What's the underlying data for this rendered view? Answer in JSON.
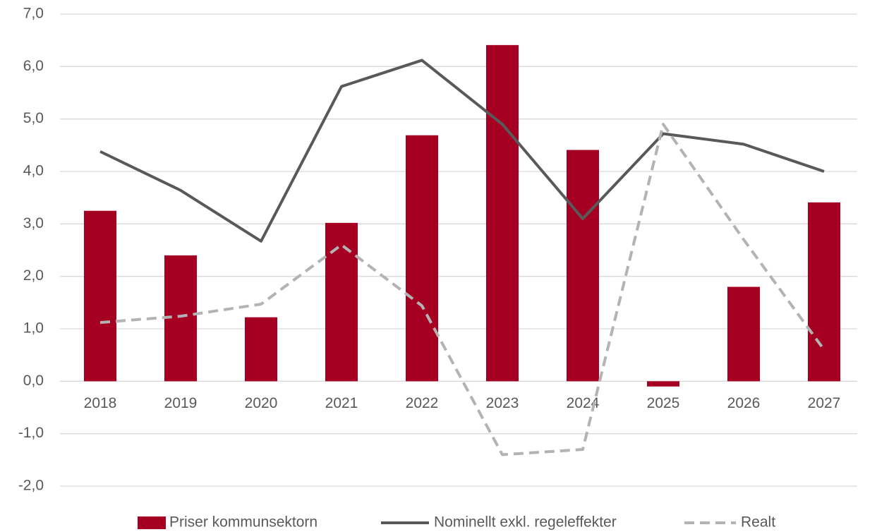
{
  "chart_data": {
    "type": "bar_line",
    "categories": [
      "2018",
      "2019",
      "2020",
      "2021",
      "2022",
      "2023",
      "2024",
      "2025",
      "2026",
      "2027"
    ],
    "series": [
      {
        "name": "Priser kommunsektorn",
        "type": "bar",
        "color": "#a50021",
        "values": [
          3.25,
          2.4,
          1.22,
          3.02,
          4.69,
          6.41,
          4.41,
          -0.1,
          1.8,
          3.41
        ]
      },
      {
        "name": "Nominellt exkl. regeleffekter",
        "type": "line",
        "color": "#595959",
        "dashed": false,
        "values": [
          4.38,
          3.64,
          2.67,
          5.62,
          6.12,
          4.9,
          3.1,
          4.72,
          4.52,
          4.0
        ]
      },
      {
        "name": "Realt",
        "type": "line",
        "color": "#b3b3b3",
        "dashed": true,
        "values": [
          1.12,
          1.24,
          1.47,
          2.6,
          1.44,
          -1.4,
          -1.3,
          4.9,
          2.7,
          0.6
        ]
      }
    ],
    "ylim": [
      -2,
      7
    ],
    "yticks": [
      {
        "value": -2,
        "label": "-2,0"
      },
      {
        "value": -1,
        "label": "-1,0"
      },
      {
        "value": 0,
        "label": "0,0"
      },
      {
        "value": 1,
        "label": "1,0"
      },
      {
        "value": 2,
        "label": "2,0"
      },
      {
        "value": 3,
        "label": "3,0"
      },
      {
        "value": 4,
        "label": "4,0"
      },
      {
        "value": 5,
        "label": "5,0"
      },
      {
        "value": 6,
        "label": "6,0"
      },
      {
        "value": 7,
        "label": "7,0"
      }
    ],
    "grid": true,
    "legend": "bottom"
  }
}
